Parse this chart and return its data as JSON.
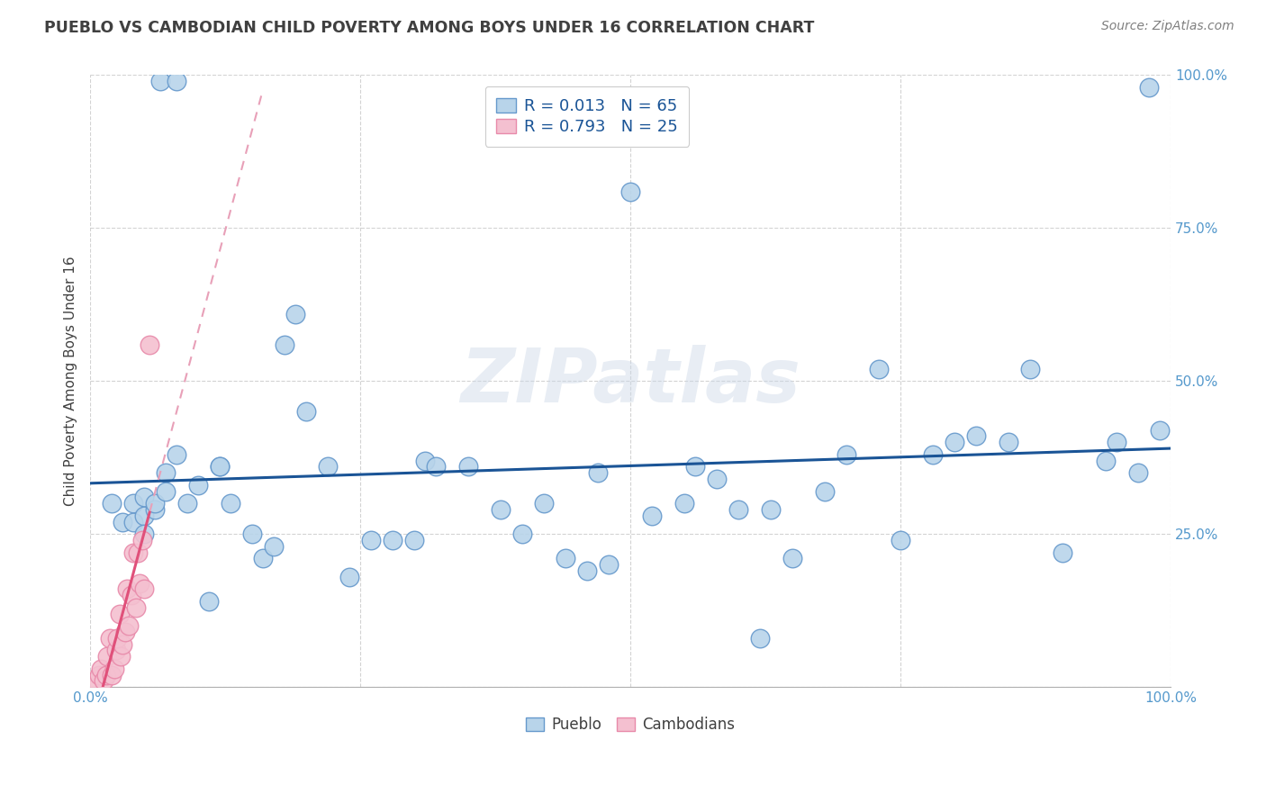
{
  "title": "PUEBLO VS CAMBODIAN CHILD POVERTY AMONG BOYS UNDER 16 CORRELATION CHART",
  "source": "Source: ZipAtlas.com",
  "ylabel": "Child Poverty Among Boys Under 16",
  "xlim": [
    0,
    1
  ],
  "ylim": [
    0,
    1
  ],
  "pueblo_color": "#b8d4ea",
  "pueblo_edge_color": "#6699cc",
  "cambodian_color": "#f4c0d0",
  "cambodian_edge_color": "#e88aaa",
  "blue_line_color": "#1a5496",
  "pink_line_color": "#e0507a",
  "pink_dash_color": "#e8a0b8",
  "r_pueblo": "0.013",
  "n_pueblo": "65",
  "r_cambodian": "0.793",
  "n_cambodian": "25",
  "legend_label_pueblo": "Pueblo",
  "legend_label_cambodian": "Cambodians",
  "watermark": "ZIPatlas",
  "pueblo_x": [
    0.065,
    0.08,
    0.19,
    0.31,
    0.46,
    0.47,
    0.5,
    0.56,
    0.63,
    0.68,
    0.73,
    0.78,
    0.82,
    0.87,
    0.94,
    0.98,
    0.02,
    0.03,
    0.04,
    0.04,
    0.05,
    0.05,
    0.05,
    0.06,
    0.06,
    0.07,
    0.07,
    0.08,
    0.09,
    0.1,
    0.11,
    0.12,
    0.12,
    0.13,
    0.15,
    0.16,
    0.17,
    0.18,
    0.2,
    0.22,
    0.24,
    0.26,
    0.28,
    0.3,
    0.32,
    0.35,
    0.38,
    0.4,
    0.42,
    0.44,
    0.48,
    0.52,
    0.55,
    0.58,
    0.6,
    0.62,
    0.65,
    0.7,
    0.75,
    0.8,
    0.85,
    0.9,
    0.95,
    0.97,
    0.99
  ],
  "pueblo_y": [
    0.99,
    0.99,
    0.61,
    0.37,
    0.19,
    0.35,
    0.81,
    0.36,
    0.29,
    0.32,
    0.52,
    0.38,
    0.41,
    0.52,
    0.37,
    0.98,
    0.3,
    0.27,
    0.3,
    0.27,
    0.28,
    0.31,
    0.25,
    0.29,
    0.3,
    0.35,
    0.32,
    0.38,
    0.3,
    0.33,
    0.14,
    0.36,
    0.36,
    0.3,
    0.25,
    0.21,
    0.23,
    0.56,
    0.45,
    0.36,
    0.18,
    0.24,
    0.24,
    0.24,
    0.36,
    0.36,
    0.29,
    0.25,
    0.3,
    0.21,
    0.2,
    0.28,
    0.3,
    0.34,
    0.29,
    0.08,
    0.21,
    0.38,
    0.24,
    0.4,
    0.4,
    0.22,
    0.4,
    0.35,
    0.42
  ],
  "cambodian_x": [
    0.005,
    0.008,
    0.01,
    0.012,
    0.015,
    0.016,
    0.018,
    0.02,
    0.022,
    0.024,
    0.025,
    0.027,
    0.028,
    0.03,
    0.032,
    0.034,
    0.036,
    0.038,
    0.04,
    0.042,
    0.044,
    0.046,
    0.048,
    0.05,
    0.055
  ],
  "cambodian_y": [
    0.01,
    0.02,
    0.03,
    0.01,
    0.02,
    0.05,
    0.08,
    0.02,
    0.03,
    0.06,
    0.08,
    0.12,
    0.05,
    0.07,
    0.09,
    0.16,
    0.1,
    0.15,
    0.22,
    0.13,
    0.22,
    0.17,
    0.24,
    0.16,
    0.56
  ],
  "grid_color": "#c8c8c8",
  "background_color": "#ffffff",
  "title_color": "#404040",
  "source_color": "#808080",
  "tick_color": "#5599cc",
  "legend_text_color": "#1a5496"
}
